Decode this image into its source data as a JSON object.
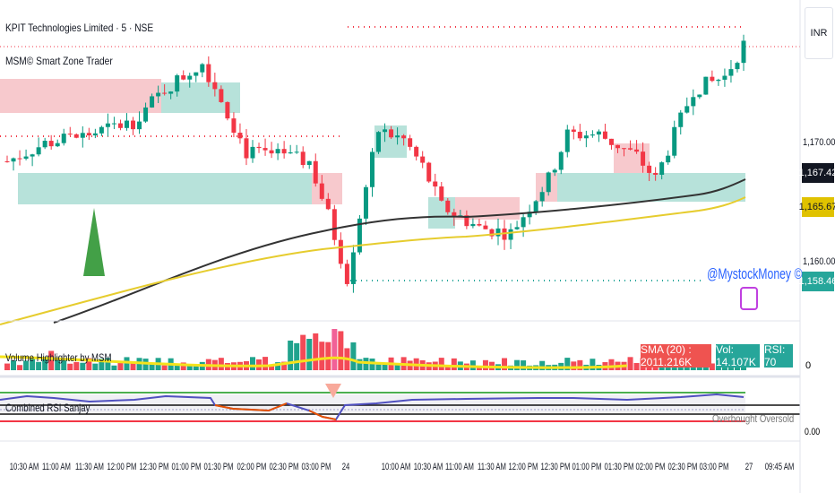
{
  "header": {
    "title": "KPIT Technologies Limited · 5 · NSE",
    "indicator": "MSM© Smart Zone Trader",
    "currency": "INR"
  },
  "price_axis": {
    "labels": [
      "1,170.00",
      "1,160.00"
    ],
    "tags": [
      {
        "value": "1,167.42",
        "color": "#131722"
      },
      {
        "value": "1,165.67",
        "color": "#e0c200"
      },
      {
        "value": "1,158.46",
        "color": "#26a69a"
      }
    ]
  },
  "watermark": "@MystockMoney ©",
  "volume_pane": {
    "title": "Volume Highlighter by MSM",
    "labels": {
      "sma": "SMA (20) : 2011.216K",
      "vol": "Vol: 14.107K",
      "rsi": "RSI: 70"
    },
    "axis": "0"
  },
  "rsi_pane": {
    "title": "Combined RSI Sanjay",
    "legend": "Overbought  Oversold",
    "axis": "0.00"
  },
  "time_axis": [
    "10:30 AM",
    "11:00 AM",
    "11:30 AM",
    "12:00 PM",
    "12:30 PM",
    "01:00 PM",
    "01:30 PM",
    "02:00 PM",
    "02:30 PM",
    "03:00 PM",
    "24",
    "10:00 AM",
    "10:30 AM",
    "11:00 AM",
    "11:30 AM",
    "12:00 PM",
    "12:30 PM",
    "01:00 PM",
    "01:30 PM",
    "02:00 PM",
    "02:30 PM",
    "03:00 PM",
    "27",
    "09:45 AM"
  ],
  "colors": {
    "up": "#089981",
    "down": "#f23645",
    "sma_black": "#333333",
    "sma_yellow": "#e6cc2e"
  },
  "price_path": [
    [
      0,
      1168.6
    ],
    [
      6,
      1170
    ],
    [
      13,
      1170.7
    ],
    [
      20,
      1171.7
    ],
    [
      25,
      1174.2
    ],
    [
      31,
      1176.3
    ],
    [
      34,
      1173.5
    ],
    [
      38,
      1169.3
    ],
    [
      43,
      1169
    ],
    [
      48,
      1168.6
    ],
    [
      51,
      1164.4
    ],
    [
      54,
      1159.5
    ],
    [
      56,
      1164.4
    ],
    [
      59,
      1171
    ],
    [
      63,
      1170.3
    ],
    [
      66,
      1168.2
    ],
    [
      69,
      1165.1
    ],
    [
      75,
      1163.4
    ],
    [
      80,
      1163
    ],
    [
      83,
      1165.1
    ],
    [
      86,
      1167.2
    ],
    [
      89,
      1170.7
    ],
    [
      94,
      1170.7
    ],
    [
      100,
      1169
    ],
    [
      103,
      1167.2
    ],
    [
      106,
      1170.7
    ],
    [
      109,
      1174.2
    ],
    [
      114,
      1175.2
    ],
    [
      117,
      1177.7
    ]
  ]
}
